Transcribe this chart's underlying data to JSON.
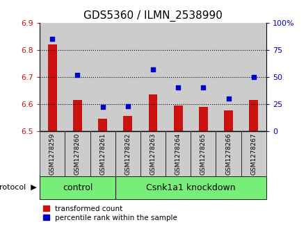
{
  "title": "GDS5360 / ILMN_2538990",
  "samples": [
    "GSM1278259",
    "GSM1278260",
    "GSM1278261",
    "GSM1278262",
    "GSM1278263",
    "GSM1278264",
    "GSM1278265",
    "GSM1278266",
    "GSM1278267"
  ],
  "transformed_counts": [
    6.82,
    6.615,
    6.545,
    6.555,
    6.635,
    6.595,
    6.59,
    6.575,
    6.615
  ],
  "percentile_ranks": [
    85,
    52,
    22,
    23,
    57,
    40,
    40,
    30,
    50
  ],
  "ylim_left": [
    6.5,
    6.9
  ],
  "ylim_right": [
    0,
    100
  ],
  "yticks_left": [
    6.5,
    6.6,
    6.7,
    6.8,
    6.9
  ],
  "yticks_right": [
    0,
    25,
    50,
    75,
    100
  ],
  "ytick_labels_right": [
    "0",
    "25",
    "50",
    "75",
    "100%"
  ],
  "bar_color": "#cc1111",
  "dot_color": "#0000cc",
  "bg_color": "#ffffff",
  "control_count": 3,
  "protocol_label_control": "control",
  "protocol_label_knockdown": "Csnk1a1 knockdown",
  "protocol_bg": "#77ee77",
  "sample_bg": "#cccccc",
  "legend_items": [
    "transformed count",
    "percentile rank within the sample"
  ],
  "legend_colors": [
    "#cc1111",
    "#0000cc"
  ],
  "title_fontsize": 11,
  "bar_width": 0.35
}
